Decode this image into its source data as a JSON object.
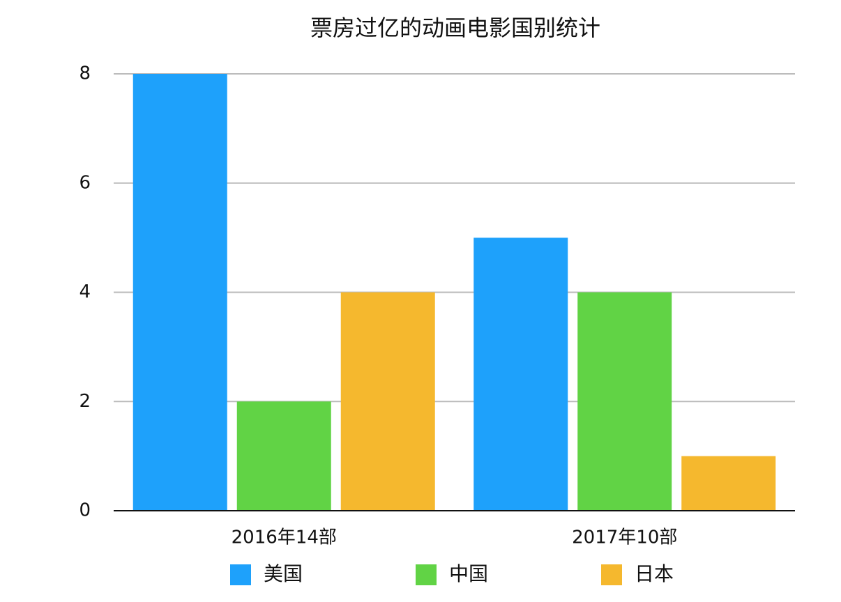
{
  "chart_data": {
    "type": "bar",
    "title": "票房过亿的动画电影国别统计",
    "categories": [
      "2016年14部",
      "2017年10部"
    ],
    "series": [
      {
        "name": "美国",
        "color": "#1ea1fb",
        "values": [
          8,
          5
        ]
      },
      {
        "name": "中国",
        "color": "#61d345",
        "values": [
          2,
          4
        ]
      },
      {
        "name": "日本",
        "color": "#f5b82e",
        "values": [
          4,
          1
        ]
      }
    ],
    "ylim": [
      0,
      8
    ],
    "yticks": [
      0,
      2,
      4,
      6,
      8
    ],
    "grid": true
  }
}
